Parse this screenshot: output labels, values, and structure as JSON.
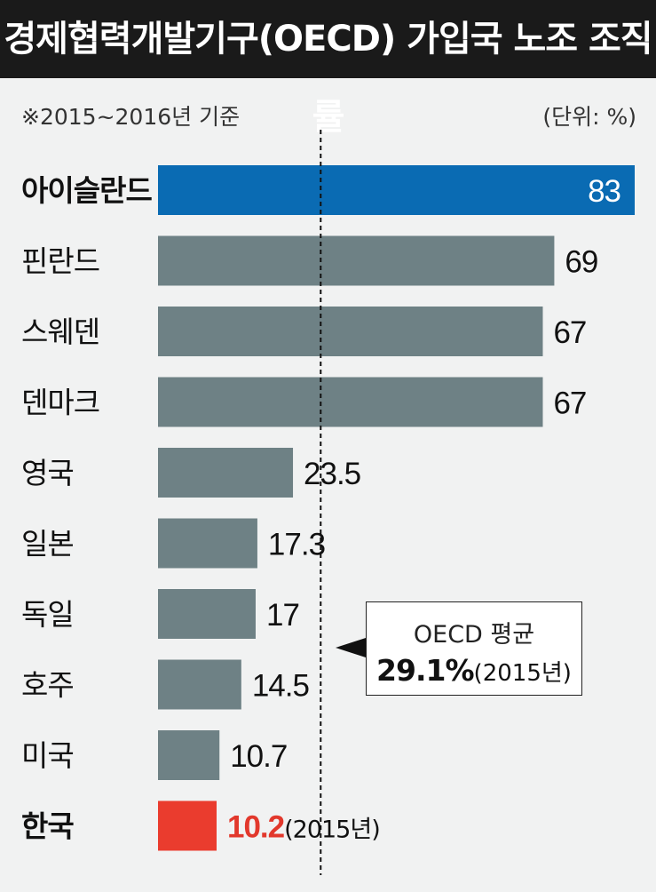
{
  "header": {
    "title": "경제협력개발기구(OECD) 가입국 노조 조직률"
  },
  "note": "※2015~2016년 기준",
  "unit": "(단위: %)",
  "colors": {
    "highlight": "#0a6bb3",
    "default_bar": "#6e8185",
    "korea": "#ea3c2e",
    "korea_text": "#e2382c"
  },
  "average": {
    "label": "OECD 평균",
    "value_text": "29.1%",
    "value": 29.1,
    "year_text": "(2015년)"
  },
  "chart_data": {
    "type": "bar",
    "orientation": "horizontal",
    "title": "경제협력개발기구(OECD) 가입국 노조 조직률",
    "categories": [
      "아이슬란드",
      "핀란드",
      "스웨덴",
      "덴마크",
      "영국",
      "일본",
      "독일",
      "호주",
      "미국",
      "한국"
    ],
    "values": [
      83,
      69,
      67,
      67,
      23.5,
      17.3,
      17,
      14.5,
      10.7,
      10.2
    ],
    "value_labels": [
      "83",
      "69",
      "67",
      "67",
      "23.5",
      "17.3",
      "17",
      "14.5",
      "10.7",
      "10.2"
    ],
    "label_suffix": [
      "",
      "",
      "",
      "",
      "",
      "",
      "",
      "",
      "",
      "(2015년)"
    ],
    "highlight": [
      "아이슬란드",
      "한국"
    ],
    "xlim": [
      0,
      83
    ],
    "reference_line": {
      "value": 29.1,
      "label": "OECD 평균 29.1%(2015년)"
    },
    "grid": false
  }
}
